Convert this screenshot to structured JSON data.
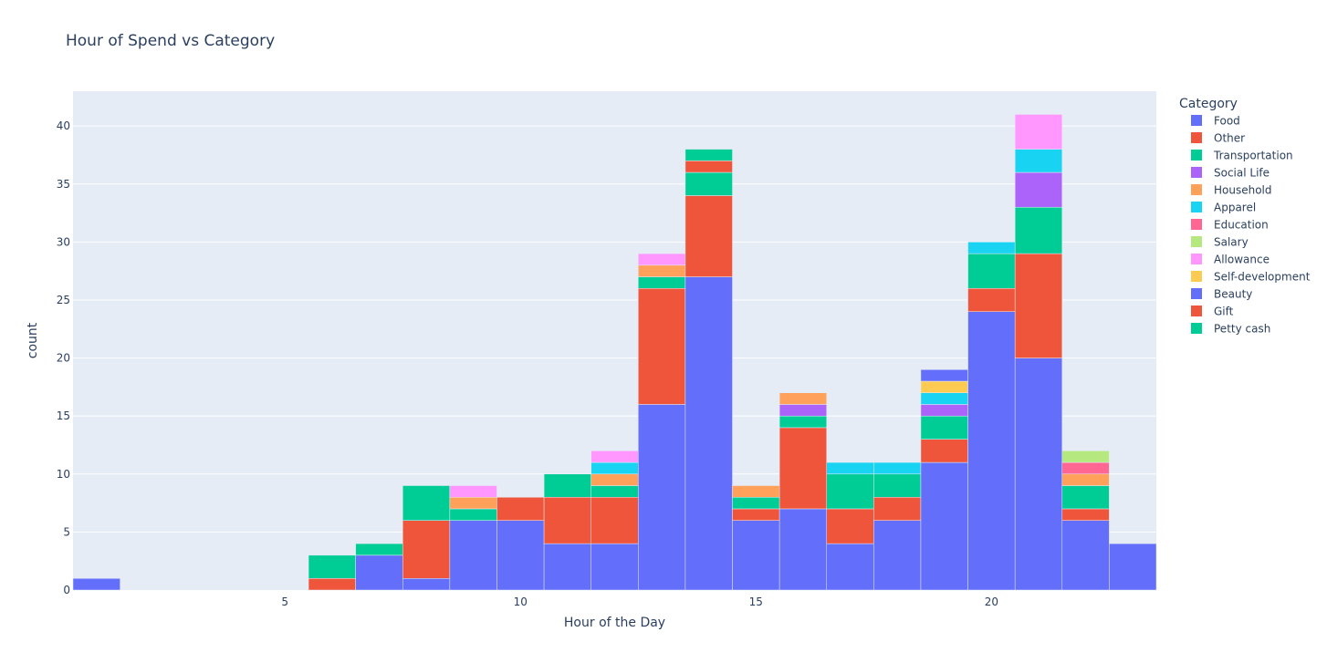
{
  "chart_data": {
    "type": "bar",
    "title": "Hour of Spend vs Category",
    "xlabel": "Hour of the Day",
    "ylabel": "count",
    "xlim": [
      0.5,
      23.5
    ],
    "ylim": [
      0,
      43
    ],
    "x_ticks": [
      5,
      10,
      15,
      20
    ],
    "y_ticks": [
      0,
      5,
      10,
      15,
      20,
      25,
      30,
      35,
      40
    ],
    "grid": true,
    "legend_position": "right",
    "legend_title": "Category",
    "barmode": "stack",
    "bin_width": 1,
    "bins": [
      1,
      2,
      3,
      4,
      5,
      6,
      7,
      8,
      9,
      10,
      11,
      12,
      13,
      14,
      15,
      16,
      17,
      18,
      19,
      20,
      21,
      22,
      23
    ],
    "series": [
      {
        "name": "Food",
        "color": "#636efa",
        "values": [
          1,
          0,
          0,
          0,
          0,
          0,
          3,
          1,
          6,
          6,
          4,
          4,
          16,
          27,
          6,
          7,
          4,
          6,
          11,
          24,
          20,
          6,
          4
        ]
      },
      {
        "name": "Other",
        "color": "#ef553b",
        "values": [
          0,
          0,
          0,
          0,
          0,
          1,
          0,
          5,
          0,
          2,
          4,
          4,
          10,
          7,
          1,
          7,
          3,
          2,
          2,
          2,
          9,
          1,
          0
        ]
      },
      {
        "name": "Transportation",
        "color": "#00cc96",
        "values": [
          0,
          0,
          0,
          0,
          0,
          2,
          1,
          3,
          1,
          0,
          2,
          1,
          1,
          2,
          1,
          1,
          3,
          2,
          2,
          3,
          4,
          2,
          0
        ]
      },
      {
        "name": "Social Life",
        "color": "#ab63fa",
        "values": [
          0,
          0,
          0,
          0,
          0,
          0,
          0,
          0,
          0,
          0,
          0,
          0,
          0,
          0,
          0,
          1,
          0,
          0,
          1,
          0,
          3,
          0,
          0
        ]
      },
      {
        "name": "Household",
        "color": "#ffa15a",
        "values": [
          0,
          0,
          0,
          0,
          0,
          0,
          0,
          0,
          1,
          0,
          0,
          1,
          1,
          0,
          1,
          1,
          0,
          0,
          0,
          0,
          0,
          1,
          0
        ]
      },
      {
        "name": "Apparel",
        "color": "#19d3f3",
        "values": [
          0,
          0,
          0,
          0,
          0,
          0,
          0,
          0,
          0,
          0,
          0,
          1,
          0,
          0,
          0,
          0,
          1,
          1,
          1,
          1,
          2,
          0,
          0
        ]
      },
      {
        "name": "Education",
        "color": "#ff6692",
        "values": [
          0,
          0,
          0,
          0,
          0,
          0,
          0,
          0,
          0,
          0,
          0,
          0,
          0,
          0,
          0,
          0,
          0,
          0,
          0,
          0,
          0,
          1,
          0
        ]
      },
      {
        "name": "Salary",
        "color": "#b6e880",
        "values": [
          0,
          0,
          0,
          0,
          0,
          0,
          0,
          0,
          0,
          0,
          0,
          0,
          0,
          0,
          0,
          0,
          0,
          0,
          0,
          0,
          0,
          1,
          0
        ]
      },
      {
        "name": "Allowance",
        "color": "#ff97ff",
        "values": [
          0,
          0,
          0,
          0,
          0,
          0,
          0,
          0,
          1,
          0,
          0,
          1,
          1,
          0,
          0,
          0,
          0,
          0,
          0,
          0,
          3,
          0,
          0
        ]
      },
      {
        "name": "Self-development",
        "color": "#fecb52",
        "values": [
          0,
          0,
          0,
          0,
          0,
          0,
          0,
          0,
          0,
          0,
          0,
          0,
          0,
          0,
          0,
          0,
          0,
          0,
          1,
          0,
          0,
          0,
          0
        ]
      },
      {
        "name": "Beauty",
        "color": "#636efa",
        "values": [
          0,
          0,
          0,
          0,
          0,
          0,
          0,
          0,
          0,
          0,
          0,
          0,
          0,
          0,
          0,
          0,
          0,
          0,
          1,
          0,
          0,
          0,
          0
        ]
      },
      {
        "name": "Gift",
        "color": "#ef553b",
        "values": [
          0,
          0,
          0,
          0,
          0,
          0,
          0,
          0,
          0,
          0,
          0,
          0,
          0,
          1,
          0,
          0,
          0,
          0,
          0,
          0,
          0,
          0,
          0
        ]
      },
      {
        "name": "Petty cash",
        "color": "#00cc96",
        "values": [
          0,
          0,
          0,
          0,
          0,
          0,
          0,
          0,
          0,
          0,
          0,
          0,
          0,
          1,
          0,
          0,
          0,
          0,
          0,
          0,
          0,
          0,
          0
        ]
      }
    ]
  }
}
